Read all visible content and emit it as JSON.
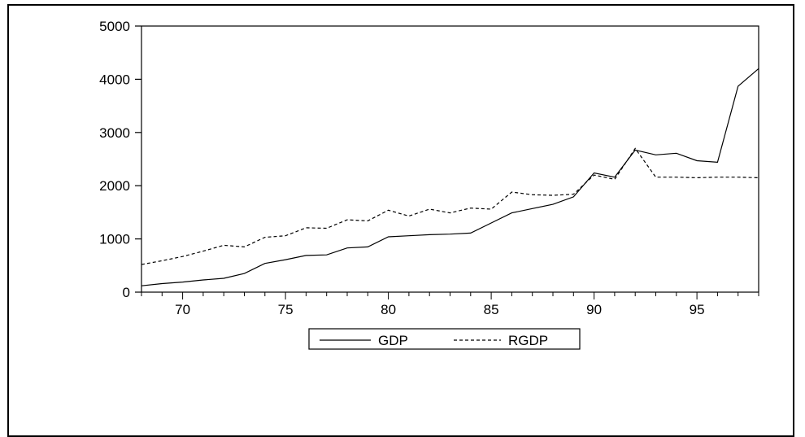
{
  "chart_data": {
    "type": "line",
    "title": "",
    "xlabel": "",
    "ylabel": "",
    "xlim": [
      68,
      98
    ],
    "ylim": [
      0,
      5000
    ],
    "grid": false,
    "legend_position": "bottom-center",
    "x_ticks": [
      70,
      75,
      80,
      85,
      90,
      95
    ],
    "y_ticks": [
      0,
      1000,
      2000,
      3000,
      4000,
      5000
    ],
    "x": [
      68,
      69,
      70,
      71,
      72,
      73,
      74,
      75,
      76,
      77,
      78,
      79,
      80,
      81,
      82,
      83,
      84,
      85,
      86,
      87,
      88,
      89,
      90,
      91,
      92,
      93,
      94,
      95,
      96,
      97,
      98
    ],
    "series": [
      {
        "name": "GDP",
        "style": "solid",
        "color": "#000000",
        "values": [
          120,
          160,
          190,
          230,
          260,
          350,
          540,
          610,
          690,
          700,
          830,
          850,
          1040,
          1060,
          1080,
          1090,
          1110,
          1300,
          1490,
          1570,
          1650,
          1790,
          2240,
          2160,
          2670,
          2580,
          2610,
          2470,
          2440,
          3870,
          4200
        ]
      },
      {
        "name": "RGDP",
        "style": "dashed",
        "color": "#000000",
        "values": [
          520,
          590,
          670,
          770,
          880,
          850,
          1030,
          1060,
          1210,
          1200,
          1360,
          1340,
          1540,
          1430,
          1560,
          1490,
          1580,
          1560,
          1880,
          1830,
          1820,
          1840,
          2200,
          2120,
          2700,
          2160,
          2160,
          2150,
          2160,
          2160,
          2150
        ]
      }
    ]
  }
}
